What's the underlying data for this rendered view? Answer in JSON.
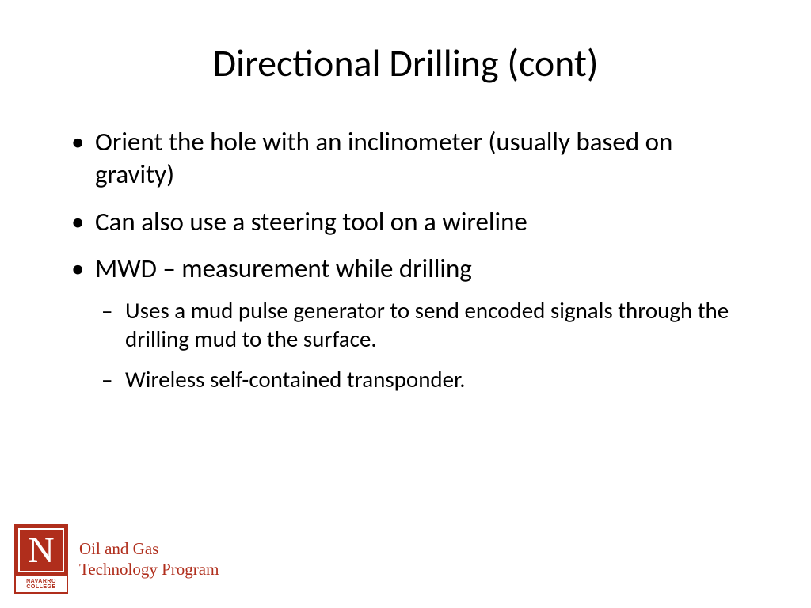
{
  "slide": {
    "title": "Directional Drilling (cont)",
    "bullets": [
      {
        "text": "Orient the hole with an inclinometer (usually based on gravity)"
      },
      {
        "text": "Can also use a steering tool on a wireline"
      },
      {
        "text": "MWD – measurement while drilling",
        "sub": [
          "Uses a mud pulse generator to send encoded signals through the drilling mud to the surface.",
          "Wireless self-contained transponder."
        ]
      }
    ]
  },
  "footer": {
    "logo": {
      "letter": "N",
      "line1": "NAVARRO",
      "line2": "COLLEGE"
    },
    "program_line1": "Oil and Gas",
    "program_line2": "Technology Program"
  },
  "colors": {
    "text": "#000000",
    "accent": "#b02e1c",
    "background": "#ffffff"
  },
  "fonts": {
    "title_size": 48,
    "bullet_size": 33,
    "sub_bullet_size": 29,
    "program_size": 21
  }
}
